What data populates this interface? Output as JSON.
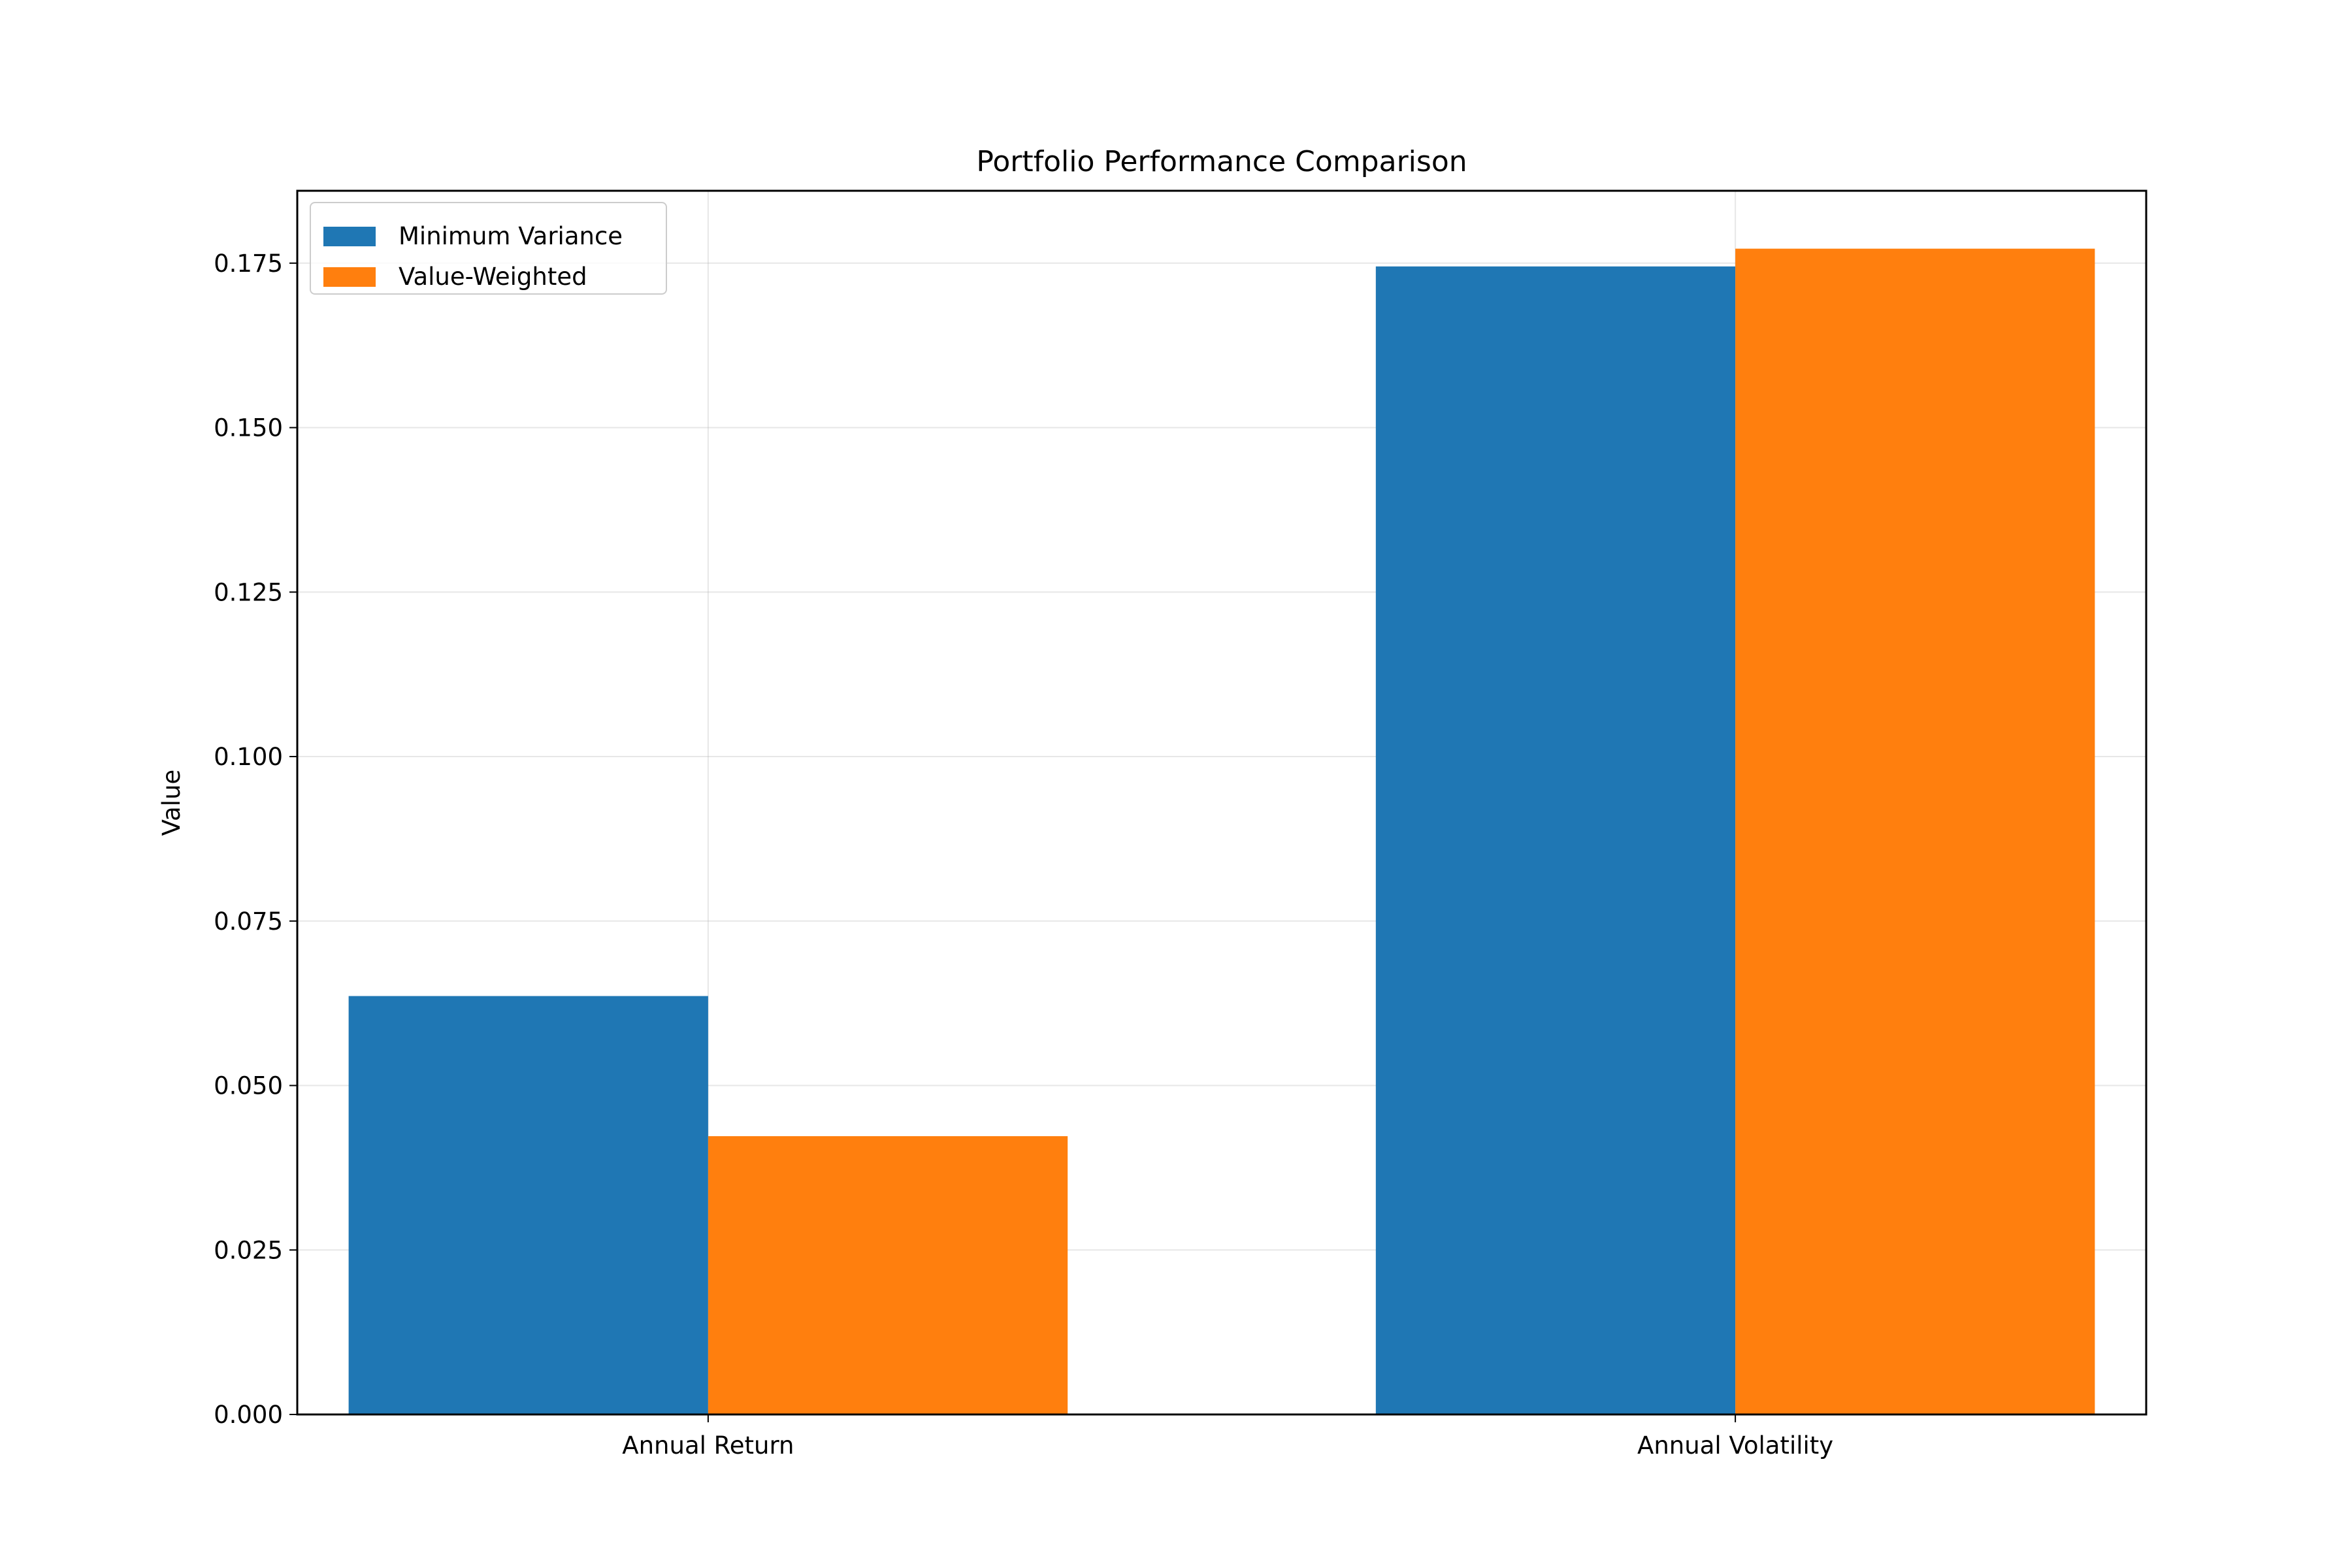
{
  "chart_data": {
    "type": "bar",
    "title": "Portfolio Performance Comparison",
    "xlabel": "",
    "ylabel": "Value",
    "categories": [
      "Annual Return",
      "Annual Volatility"
    ],
    "series": [
      {
        "name": "Minimum Variance",
        "values": [
          0.0636,
          0.1745
        ],
        "color": "#1f77b4"
      },
      {
        "name": "Value-Weighted",
        "values": [
          0.0423,
          0.1772
        ],
        "color": "#ff7f0e"
      }
    ],
    "ylim": [
      0,
      0.186
    ],
    "yticks": [
      0.0,
      0.025,
      0.05,
      0.075,
      0.1,
      0.125,
      0.15,
      0.175
    ],
    "ytick_labels": [
      "0.000",
      "0.025",
      "0.050",
      "0.075",
      "0.100",
      "0.125",
      "0.150",
      "0.175"
    ],
    "grid": true,
    "legend_position": "top-left"
  }
}
